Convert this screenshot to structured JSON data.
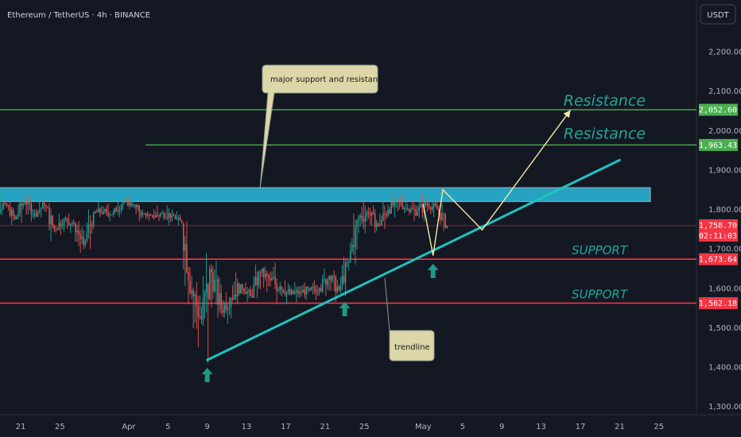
{
  "header": {
    "title": "Ethereum / TetherUS · 4h · BINANCE",
    "currency_button": "USDT"
  },
  "colors": {
    "up": "#26a69a",
    "down": "#ef5350",
    "resistance": "#4caf50",
    "support": "#f23645",
    "zone": "#29b6d8",
    "trendline": "#1ec4c0",
    "projection": "#f5e7a6",
    "resistance_text": "#22a595",
    "support_text": "#1ea79a",
    "callout_fill": "#ddd6a8",
    "arrow": "#1d9a86"
  },
  "chart_data": {
    "type": "candlestick",
    "x_ticks": [
      "21",
      "25",
      "Apr",
      "5",
      "9",
      "13",
      "17",
      "21",
      "25",
      "May",
      "5",
      "9",
      "13",
      "17",
      "21",
      "25"
    ],
    "y_ticks": [
      "2,200.00",
      "2,100.00",
      "2,000.00",
      "1,900.00",
      "1,800.00",
      "1,700.00",
      "1,600.00",
      "1,500.00",
      "1,400.00",
      "1,300.00"
    ],
    "ylim": [
      1300,
      2200
    ],
    "price_levels": [
      {
        "name": "resistance-upper",
        "value": 2052.6,
        "label": "2,052.60",
        "text": "Resistance"
      },
      {
        "name": "resistance-lower",
        "value": 1963.43,
        "label": "1,963.43",
        "text": "Resistance"
      },
      {
        "name": "support-upper",
        "value": 1673.64,
        "label": "1,673.64",
        "text": "SUPPORT"
      },
      {
        "name": "support-lower",
        "value": 1562.18,
        "label": "1,562.18",
        "text": "SUPPORT"
      }
    ],
    "current_price": {
      "value": 1758.7,
      "label": "1,758.70",
      "countdown": "02:11:03"
    },
    "zone": {
      "low": 1820,
      "high": 1855,
      "label": "major support and resistance"
    },
    "trendline": {
      "label": "trendline",
      "from": {
        "x": "Apr 9",
        "y": 1418
      },
      "to": {
        "x": "May 21",
        "y": 1925
      }
    },
    "candles_daily": [
      {
        "date": "Mar 18",
        "open": 1755,
        "high": 1815,
        "low": 1740,
        "close": 1800
      },
      {
        "date": "Mar 19",
        "open": 1800,
        "high": 1850,
        "low": 1785,
        "close": 1815
      },
      {
        "date": "Mar 20",
        "open": 1815,
        "high": 1820,
        "low": 1760,
        "close": 1775
      },
      {
        "date": "Mar 21",
        "open": 1775,
        "high": 1840,
        "low": 1765,
        "close": 1825
      },
      {
        "date": "Mar 22",
        "open": 1825,
        "high": 1840,
        "low": 1770,
        "close": 1790
      },
      {
        "date": "Mar 23",
        "open": 1790,
        "high": 1835,
        "low": 1780,
        "close": 1810
      },
      {
        "date": "Mar 24",
        "open": 1810,
        "high": 1815,
        "low": 1720,
        "close": 1750
      },
      {
        "date": "Mar 25",
        "open": 1750,
        "high": 1790,
        "low": 1735,
        "close": 1775
      },
      {
        "date": "Mar 26",
        "open": 1775,
        "high": 1790,
        "low": 1740,
        "close": 1765
      },
      {
        "date": "Mar 27",
        "open": 1765,
        "high": 1770,
        "low": 1690,
        "close": 1710
      },
      {
        "date": "Mar 28",
        "open": 1710,
        "high": 1800,
        "low": 1700,
        "close": 1790
      },
      {
        "date": "Mar 29",
        "open": 1790,
        "high": 1825,
        "low": 1780,
        "close": 1795
      },
      {
        "date": "Mar 30",
        "open": 1795,
        "high": 1815,
        "low": 1770,
        "close": 1790
      },
      {
        "date": "Mar 31",
        "open": 1790,
        "high": 1825,
        "low": 1780,
        "close": 1820
      },
      {
        "date": "Apr 1",
        "open": 1820,
        "high": 1835,
        "low": 1800,
        "close": 1810
      },
      {
        "date": "Apr 2",
        "open": 1810,
        "high": 1815,
        "low": 1770,
        "close": 1790
      },
      {
        "date": "Apr 3",
        "open": 1790,
        "high": 1795,
        "low": 1770,
        "close": 1780
      },
      {
        "date": "Apr 4",
        "open": 1780,
        "high": 1810,
        "low": 1770,
        "close": 1790
      },
      {
        "date": "Apr 5",
        "open": 1790,
        "high": 1810,
        "low": 1760,
        "close": 1785
      },
      {
        "date": "Apr 6",
        "open": 1785,
        "high": 1795,
        "low": 1760,
        "close": 1765
      },
      {
        "date": "Apr 7",
        "open": 1765,
        "high": 1770,
        "low": 1560,
        "close": 1595
      },
      {
        "date": "Apr 8",
        "open": 1595,
        "high": 1615,
        "low": 1450,
        "close": 1520
      },
      {
        "date": "Apr 9",
        "open": 1520,
        "high": 1690,
        "low": 1410,
        "close": 1640
      },
      {
        "date": "Apr 10",
        "open": 1640,
        "high": 1670,
        "low": 1525,
        "close": 1545
      },
      {
        "date": "Apr 11",
        "open": 1545,
        "high": 1590,
        "low": 1510,
        "close": 1575
      },
      {
        "date": "Apr 12",
        "open": 1575,
        "high": 1640,
        "low": 1560,
        "close": 1610
      },
      {
        "date": "Apr 13",
        "open": 1610,
        "high": 1615,
        "low": 1565,
        "close": 1580
      },
      {
        "date": "Apr 14",
        "open": 1580,
        "high": 1660,
        "low": 1575,
        "close": 1640
      },
      {
        "date": "Apr 15",
        "open": 1640,
        "high": 1655,
        "low": 1590,
        "close": 1620
      },
      {
        "date": "Apr 16",
        "open": 1620,
        "high": 1665,
        "low": 1560,
        "close": 1605
      },
      {
        "date": "Apr 17",
        "open": 1605,
        "high": 1620,
        "low": 1560,
        "close": 1585
      },
      {
        "date": "Apr 18",
        "open": 1585,
        "high": 1615,
        "low": 1565,
        "close": 1590
      },
      {
        "date": "Apr 19",
        "open": 1590,
        "high": 1615,
        "low": 1570,
        "close": 1595
      },
      {
        "date": "Apr 20",
        "open": 1595,
        "high": 1620,
        "low": 1570,
        "close": 1600
      },
      {
        "date": "Apr 21",
        "open": 1600,
        "high": 1650,
        "low": 1580,
        "close": 1630
      },
      {
        "date": "Apr 22",
        "open": 1630,
        "high": 1645,
        "low": 1565,
        "close": 1595
      },
      {
        "date": "Apr 23",
        "open": 1595,
        "high": 1680,
        "low": 1580,
        "close": 1670
      },
      {
        "date": "Apr 24",
        "open": 1670,
        "high": 1790,
        "low": 1660,
        "close": 1780
      },
      {
        "date": "Apr 25",
        "open": 1780,
        "high": 1830,
        "low": 1740,
        "close": 1790
      },
      {
        "date": "Apr 26",
        "open": 1790,
        "high": 1810,
        "low": 1740,
        "close": 1760
      },
      {
        "date": "Apr 27",
        "open": 1760,
        "high": 1830,
        "low": 1750,
        "close": 1800
      },
      {
        "date": "Apr 28",
        "open": 1800,
        "high": 1845,
        "low": 1780,
        "close": 1820
      },
      {
        "date": "Apr 29",
        "open": 1820,
        "high": 1840,
        "low": 1790,
        "close": 1800
      },
      {
        "date": "Apr 30",
        "open": 1800,
        "high": 1825,
        "low": 1770,
        "close": 1795
      },
      {
        "date": "May 1",
        "open": 1795,
        "high": 1840,
        "low": 1770,
        "close": 1815
      },
      {
        "date": "May 2",
        "open": 1815,
        "high": 1830,
        "low": 1780,
        "close": 1800
      },
      {
        "date": "May 3",
        "open": 1800,
        "high": 1815,
        "low": 1745,
        "close": 1759
      }
    ],
    "projection_path": [
      {
        "x": "May 1",
        "y": 1813
      },
      {
        "x": "May 2",
        "y": 1683
      },
      {
        "x": "May 3",
        "y": 1850
      },
      {
        "x": "May 7",
        "y": 1748
      },
      {
        "x": "May 16",
        "y": 2052
      }
    ],
    "signal_arrows": [
      "Apr 9",
      "Apr 23",
      "May 2"
    ]
  }
}
